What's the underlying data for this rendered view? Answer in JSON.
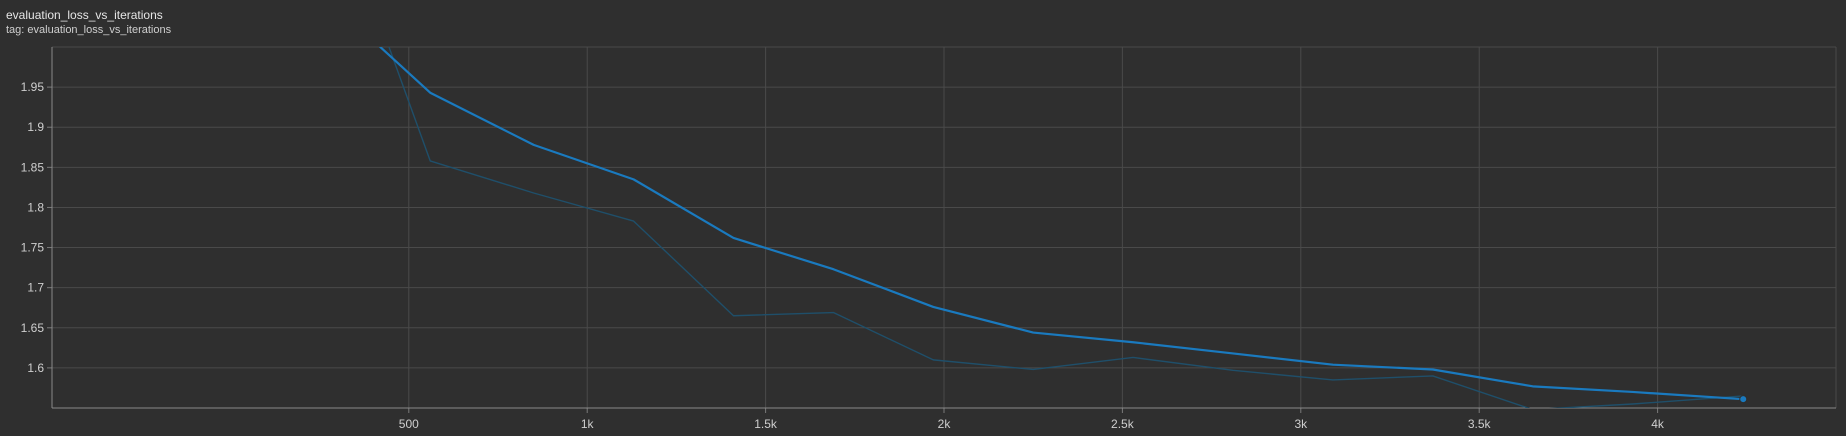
{
  "chart_data": {
    "type": "line",
    "title": "evaluation_loss_vs_iterations",
    "subtitle": "tag: evaluation_loss_vs_iterations",
    "xlim": [
      -500,
      4500
    ],
    "ylim": [
      1.55,
      2.0
    ],
    "x_ticks": [
      {
        "value": 500,
        "label": "500"
      },
      {
        "value": 1000,
        "label": "1k"
      },
      {
        "value": 1500,
        "label": "1.5k"
      },
      {
        "value": 2000,
        "label": "2k"
      },
      {
        "value": 2500,
        "label": "2.5k"
      },
      {
        "value": 3000,
        "label": "3k"
      },
      {
        "value": 3500,
        "label": "3.5k"
      },
      {
        "value": 4000,
        "label": "4k"
      }
    ],
    "y_ticks": [
      {
        "value": 1.6,
        "label": "1.6"
      },
      {
        "value": 1.65,
        "label": "1.65"
      },
      {
        "value": 1.7,
        "label": "1.7"
      },
      {
        "value": 1.75,
        "label": "1.75"
      },
      {
        "value": 1.8,
        "label": "1.8"
      },
      {
        "value": 1.85,
        "label": "1.85"
      },
      {
        "value": 1.9,
        "label": "1.9"
      },
      {
        "value": 1.95,
        "label": "1.95"
      }
    ],
    "series": [
      {
        "role": "raw",
        "color": "#1f4f6a",
        "x": [
          420,
          560,
          850,
          1130,
          1410,
          1690,
          1970,
          2250,
          2530,
          2810,
          3090,
          3370,
          3650,
          3930,
          4240
        ],
        "y": [
          2.03,
          1.858,
          1.818,
          1.783,
          1.665,
          1.669,
          1.61,
          1.598,
          1.613,
          1.597,
          1.585,
          1.59,
          1.548,
          1.555,
          1.565
        ]
      },
      {
        "role": "smoothed",
        "color": "#1a7abf",
        "x": [
          420,
          560,
          850,
          1130,
          1410,
          1690,
          1970,
          2250,
          2530,
          2810,
          3090,
          3370,
          3650,
          3930,
          4240
        ],
        "y": [
          2.0,
          1.943,
          1.878,
          1.835,
          1.762,
          1.723,
          1.676,
          1.644,
          1.632,
          1.618,
          1.604,
          1.598,
          1.577,
          1.57,
          1.561
        ]
      }
    ],
    "grid": true,
    "legend": "none"
  }
}
